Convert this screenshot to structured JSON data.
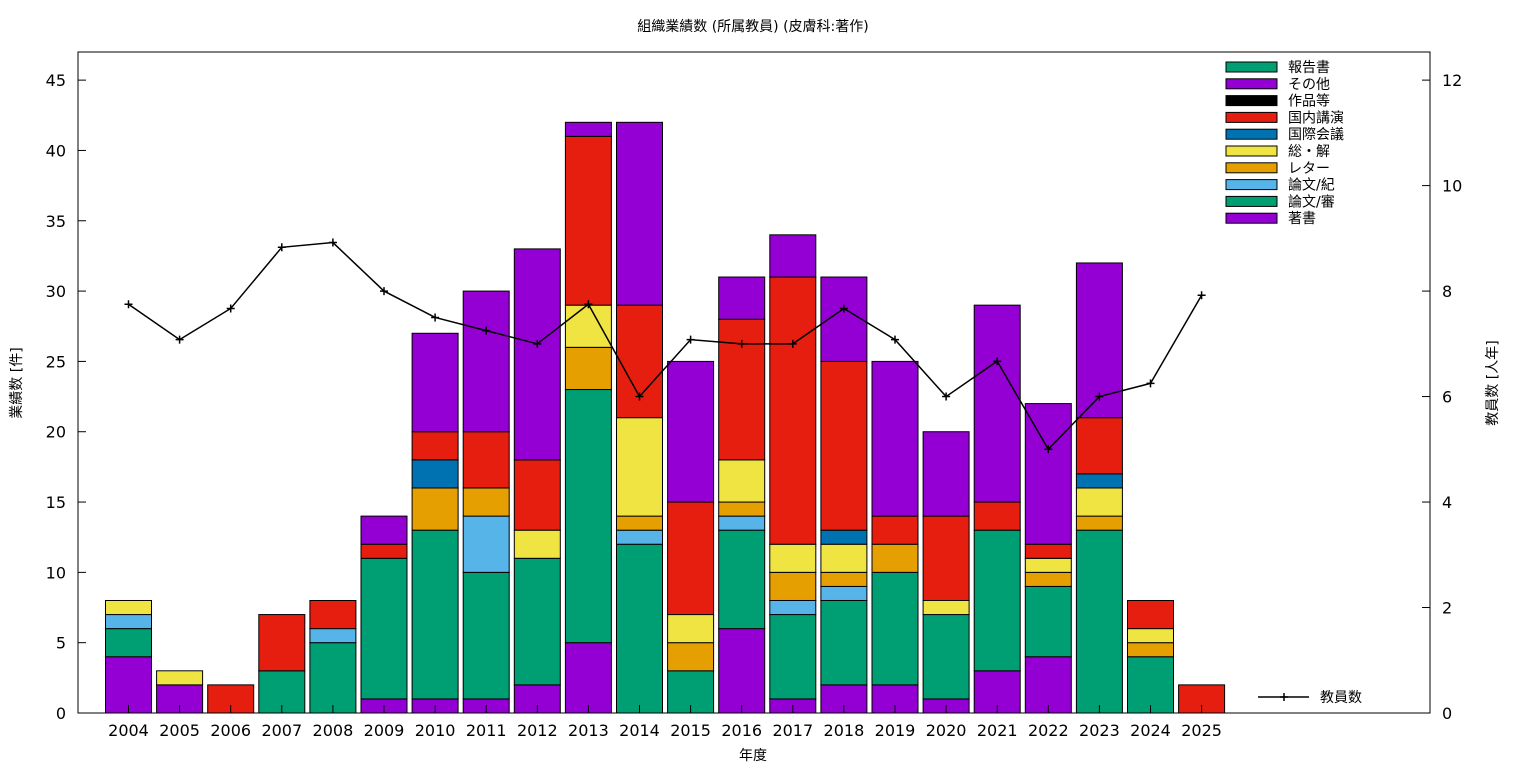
{
  "chart_data": {
    "type": "bar",
    "stacked": true,
    "title": "組織業績数 (所属教員) (皮膚科:著作)",
    "xlabel": "年度",
    "ylabel": "業績数 [件]",
    "y2label": "教員数 [人年]",
    "ylim": [
      0,
      47
    ],
    "y2lim": [
      0,
      12.533
    ],
    "yticks": [
      0,
      5,
      10,
      15,
      20,
      25,
      30,
      35,
      40,
      45
    ],
    "y2ticks": [
      0,
      2,
      4,
      6,
      8,
      10,
      12
    ],
    "categories": [
      "2004",
      "2005",
      "2006",
      "2007",
      "2008",
      "2009",
      "2010",
      "2011",
      "2012",
      "2013",
      "2014",
      "2015",
      "2016",
      "2017",
      "2018",
      "2019",
      "2020",
      "2021",
      "2022",
      "2023",
      "2024",
      "2025"
    ],
    "legend_position": "top-right",
    "series": [
      {
        "name": "著書",
        "color": "#9400d3",
        "values": [
          4,
          2,
          0,
          0,
          0,
          1,
          1,
          1,
          2,
          5,
          0,
          0,
          6,
          1,
          2,
          2,
          1,
          3,
          4,
          0,
          0,
          0
        ]
      },
      {
        "name": "論文/審",
        "color": "#009e73",
        "values": [
          2,
          0,
          0,
          3,
          5,
          10,
          12,
          9,
          9,
          18,
          12,
          3,
          7,
          6,
          6,
          8,
          6,
          10,
          5,
          13,
          4,
          0
        ]
      },
      {
        "name": "論文/紀",
        "color": "#56b4e9",
        "values": [
          1,
          0,
          0,
          0,
          1,
          0,
          0,
          4,
          0,
          0,
          1,
          0,
          1,
          1,
          1,
          0,
          0,
          0,
          0,
          0,
          0,
          0
        ]
      },
      {
        "name": "レター",
        "color": "#e69f00",
        "values": [
          0,
          0,
          0,
          0,
          0,
          0,
          3,
          2,
          0,
          3,
          1,
          2,
          1,
          2,
          1,
          2,
          0,
          0,
          1,
          1,
          1,
          0
        ]
      },
      {
        "name": "総・解",
        "color": "#f0e442",
        "values": [
          1,
          1,
          0,
          0,
          0,
          0,
          0,
          0,
          2,
          3,
          7,
          2,
          3,
          2,
          2,
          0,
          1,
          0,
          1,
          2,
          1,
          0
        ]
      },
      {
        "name": "国際会議",
        "color": "#0072b2",
        "values": [
          0,
          0,
          0,
          0,
          0,
          0,
          2,
          0,
          0,
          0,
          0,
          0,
          0,
          0,
          1,
          0,
          0,
          0,
          0,
          1,
          0,
          0
        ]
      },
      {
        "name": "国内講演",
        "color": "#e51e10",
        "values": [
          0,
          0,
          2,
          4,
          2,
          1,
          2,
          4,
          5,
          12,
          8,
          8,
          10,
          19,
          12,
          2,
          6,
          2,
          1,
          4,
          2,
          2
        ]
      },
      {
        "name": "作品等",
        "color": "#000000",
        "values": [
          0,
          0,
          0,
          0,
          0,
          0,
          0,
          0,
          0,
          0,
          0,
          0,
          0,
          0,
          0,
          0,
          0,
          0,
          0,
          0,
          0,
          0
        ]
      },
      {
        "name": "その他",
        "color": "#9400d3",
        "values": [
          0,
          0,
          0,
          0,
          0,
          2,
          7,
          10,
          15,
          1,
          13,
          10,
          3,
          3,
          6,
          11,
          6,
          14,
          10,
          11,
          0,
          0
        ]
      },
      {
        "name": "報告書",
        "color": "#009e73",
        "values": [
          0,
          0,
          0,
          0,
          0,
          0,
          0,
          0,
          0,
          0,
          0,
          0,
          0,
          0,
          0,
          0,
          0,
          0,
          0,
          0,
          0,
          0
        ]
      }
    ],
    "line_series": {
      "name": "教員数",
      "color": "#000000",
      "axis": "right",
      "values": [
        7.75,
        7.08,
        7.67,
        8.83,
        8.92,
        8.0,
        7.5,
        7.25,
        7.0,
        7.75,
        6.0,
        7.08,
        7.0,
        7.0,
        7.67,
        7.08,
        6.0,
        6.67,
        5.0,
        6.0,
        6.25,
        7.92
      ]
    }
  }
}
